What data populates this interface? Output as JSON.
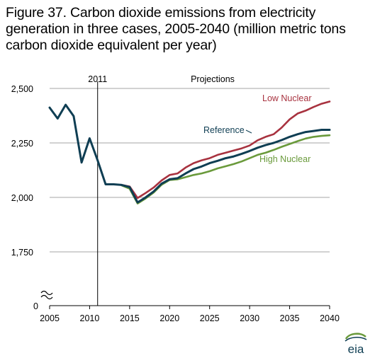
{
  "figure_title": "Figure 37. Carbon dioxide emissions from electricity generation in three cases, 2005-2040 (million metric tons carbon dioxide equivalent per year)",
  "logo_text": "eia",
  "colors": {
    "reference": "#0f3e53",
    "low_nuclear": "#a8323f",
    "high_nuclear": "#6a9a3b",
    "grid": "#a6a6a6",
    "axis": "#000000"
  },
  "chart_data": {
    "type": "line",
    "title": "Figure 37. Carbon dioxide emissions from electricity generation in three cases, 2005-2040 (million metric tons carbon dioxide equivalent per year)",
    "xlabel": "",
    "ylabel": "",
    "xlim": [
      2005,
      2040
    ],
    "ylim": [
      1500,
      2500
    ],
    "axis_break": true,
    "x_ticks": [
      "2005",
      "2010",
      "2015",
      "2020",
      "2025",
      "2030",
      "2035",
      "2040"
    ],
    "y_ticks": [
      "2,500",
      "2,250",
      "2,000",
      "1,750",
      "0"
    ],
    "grid": "horizontal",
    "annotations": {
      "history_divider_label": "2011",
      "projections_label": "Projections"
    },
    "series": [
      {
        "name": "Reference",
        "color": "#0f3e53",
        "x": [
          2005,
          2006,
          2007,
          2008,
          2009,
          2010,
          2011,
          2012,
          2013,
          2014,
          2015,
          2016,
          2017,
          2018,
          2019,
          2020,
          2021,
          2022,
          2023,
          2024,
          2025,
          2026,
          2027,
          2028,
          2029,
          2030,
          2031,
          2032,
          2033,
          2034,
          2035,
          2036,
          2037,
          2038,
          2039,
          2040
        ],
        "values": [
          2412,
          2362,
          2425,
          2373,
          2160,
          2271,
          2170,
          2060,
          2060,
          2057,
          2047,
          1977,
          2000,
          2027,
          2063,
          2083,
          2088,
          2110,
          2130,
          2142,
          2157,
          2168,
          2180,
          2188,
          2200,
          2213,
          2228,
          2240,
          2250,
          2263,
          2278,
          2290,
          2300,
          2305,
          2310,
          2310
        ]
      },
      {
        "name": "Low Nuclear",
        "color": "#a8323f",
        "x": [
          2014,
          2015,
          2016,
          2017,
          2018,
          2019,
          2020,
          2021,
          2022,
          2023,
          2024,
          2025,
          2026,
          2027,
          2028,
          2029,
          2030,
          2031,
          2032,
          2033,
          2034,
          2035,
          2036,
          2037,
          2038,
          2039,
          2040
        ],
        "values": [
          2057,
          2050,
          1997,
          2020,
          2045,
          2078,
          2103,
          2110,
          2137,
          2157,
          2170,
          2180,
          2195,
          2205,
          2215,
          2225,
          2238,
          2262,
          2278,
          2290,
          2320,
          2358,
          2385,
          2398,
          2415,
          2430,
          2440
        ]
      },
      {
        "name": "High Nuclear",
        "color": "#6a9a3b",
        "x": [
          2014,
          2015,
          2016,
          2017,
          2018,
          2019,
          2020,
          2021,
          2022,
          2023,
          2024,
          2025,
          2026,
          2027,
          2028,
          2029,
          2030,
          2031,
          2032,
          2033,
          2034,
          2035,
          2036,
          2037,
          2038,
          2039,
          2040
        ],
        "values": [
          2055,
          2040,
          1972,
          1995,
          2022,
          2058,
          2080,
          2083,
          2093,
          2103,
          2110,
          2120,
          2133,
          2143,
          2153,
          2165,
          2180,
          2195,
          2205,
          2218,
          2232,
          2245,
          2258,
          2270,
          2278,
          2282,
          2285
        ]
      }
    ]
  }
}
